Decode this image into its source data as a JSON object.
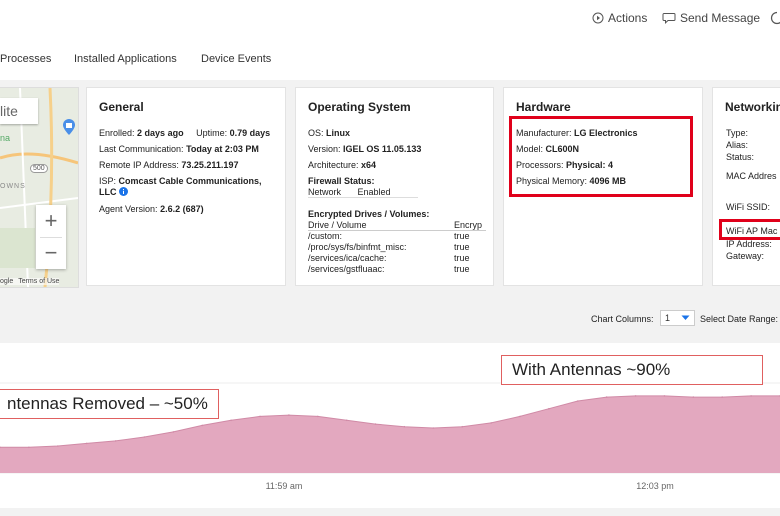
{
  "topbar": {
    "actions_label": "Actions",
    "send_message_label": "Send Message"
  },
  "tabs": [
    "Processes",
    "Installed Applications",
    "Device Events"
  ],
  "map": {
    "satellite_label": "lite",
    "map_labels": [
      "na",
      "500",
      "OWNS"
    ],
    "zoom_in": "+",
    "zoom_out": "−",
    "attribution_left": "ogle",
    "terms_label": "Terms of Use"
  },
  "general": {
    "title": "General",
    "enrolled_label": "Enrolled:",
    "enrolled_value": "2 days ago",
    "uptime_label": "Uptime:",
    "uptime_value": "0.79 days",
    "last_comm_label": "Last Communication:",
    "last_comm_value": "Today at 2:03 PM",
    "remote_ip_label": "Remote IP Address:",
    "remote_ip_value": "73.25.211.197",
    "isp_label": "ISP:",
    "isp_value_1": "Comcast Cable Communications,",
    "isp_value_2": "LLC",
    "agent_label": "Agent Version:",
    "agent_value": "2.6.2 (687)"
  },
  "os": {
    "title": "Operating System",
    "os_label": "OS:",
    "os_value": "Linux",
    "version_label": "Version:",
    "version_value": "IGEL OS 11.05.133",
    "arch_label": "Architecture:",
    "arch_value": "x64",
    "firewall_label": "Firewall Status:",
    "firewall_col1": "Network",
    "firewall_col2": "Enabled",
    "drives_label": "Encrypted Drives / Volumes:",
    "drives_header_1": "Drive / Volume",
    "drives_header_2": "Encryp",
    "drives": [
      {
        "name": "/custom:",
        "value": "true"
      },
      {
        "name": "/proc/sys/fs/binfmt_misc:",
        "value": "true"
      },
      {
        "name": "/services/ica/cache:",
        "value": "true"
      },
      {
        "name": "/services/gstfluaac:",
        "value": "true"
      }
    ]
  },
  "hardware": {
    "title": "Hardware",
    "manufacturer_label": "Manufacturer:",
    "manufacturer_value": "LG Electronics",
    "model_label": "Model:",
    "model_value": "CL600N",
    "processors_label": "Processors:",
    "processors_value": "Physical: 4",
    "memory_label": "Physical Memory:",
    "memory_value": "4096 MB"
  },
  "networking": {
    "title": "Networkin",
    "type_label": "Type:",
    "alias_label": "Alias:",
    "status_label": "Status:",
    "mac_label": "MAC Addres",
    "wifi_ssid_label": "WiFi SSID:",
    "wifi_ap_mac_label": "WiFi AP Mac",
    "ip_label": "IP Address:",
    "gateway_label": "Gateway:"
  },
  "chart_controls": {
    "columns_label": "Chart Columns:",
    "columns_value": "1",
    "date_range_label": "Select Date Range:"
  },
  "annotations": {
    "left": "ntennas Removed – ~50%",
    "right": "With Antennas ~90%"
  },
  "colors": {
    "area_fill": "#e3a8bf",
    "area_line": "#d08aa6",
    "highlight": "#e0001a",
    "info_blue": "#1a73e8"
  },
  "chart_data": {
    "type": "area",
    "title": "",
    "xlabel": "",
    "ylabel": "",
    "x_ticks": [
      "11:59 am",
      "12:03 pm"
    ],
    "series": [
      {
        "values": [
          50,
          50,
          51,
          53,
          55,
          58,
          62,
          67,
          71,
          74,
          75,
          74,
          71,
          68,
          66,
          65,
          66,
          69,
          74,
          80,
          86,
          89,
          90,
          90,
          89,
          89,
          90,
          90
        ]
      }
    ]
  }
}
